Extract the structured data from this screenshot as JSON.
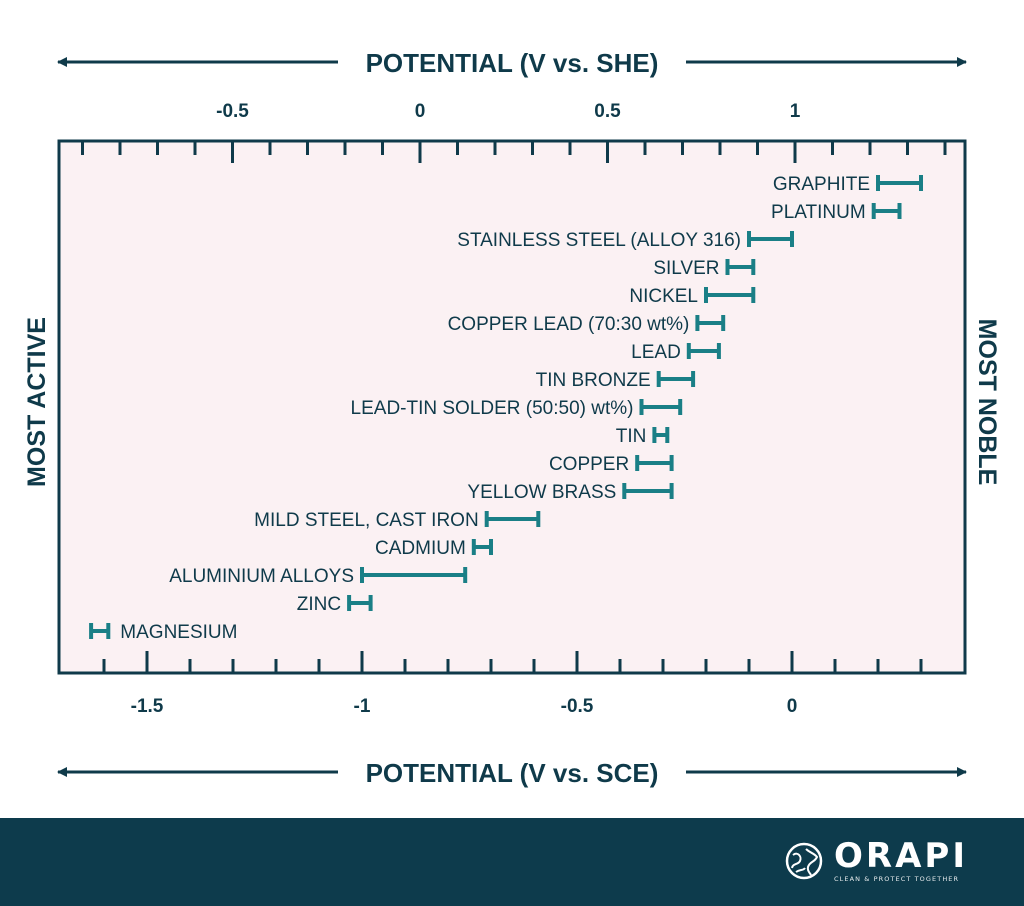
{
  "chart_data": {
    "type": "range",
    "top_axis_title": "POTENTIAL (V vs. SHE)",
    "bottom_axis_title": "POTENTIAL (V vs. SCE)",
    "left_label": "MOST ACTIVE",
    "right_label": "MOST NOBLE",
    "top_axis": {
      "ticks": [
        -0.5,
        0,
        0.5,
        1
      ],
      "tick_labels": [
        "-0.5",
        "0",
        "0.5",
        "1"
      ],
      "range": [
        -1.0,
        1.45
      ]
    },
    "bottom_axis": {
      "ticks": [
        -1.5,
        -1,
        -0.5,
        0
      ],
      "tick_labels": [
        "-1.5",
        "-1",
        "-0.5",
        "0"
      ],
      "range": [
        -1.7,
        0.41
      ]
    },
    "series": [
      {
        "label": "GRAPHITE",
        "min": 0.2,
        "max": 0.3
      },
      {
        "label": "PLATINUM",
        "min": 0.19,
        "max": 0.25
      },
      {
        "label": "STAINLESS STEEL (ALLOY 316)",
        "min": -0.1,
        "max": 0.0
      },
      {
        "label": "SILVER",
        "min": -0.15,
        "max": -0.09
      },
      {
        "label": "NICKEL",
        "min": -0.2,
        "max": -0.09
      },
      {
        "label": "COPPER LEAD (70:30 wt%)",
        "min": -0.22,
        "max": -0.16
      },
      {
        "label": "LEAD",
        "min": -0.24,
        "max": -0.17
      },
      {
        "label": "TIN BRONZE",
        "min": -0.31,
        "max": -0.23
      },
      {
        "label": "LEAD-TIN SOLDER (50:50) wt%)",
        "min": -0.35,
        "max": -0.26
      },
      {
        "label": "TIN",
        "min": -0.32,
        "max": -0.29
      },
      {
        "label": "COPPER",
        "min": -0.36,
        "max": -0.28
      },
      {
        "label": "YELLOW BRASS",
        "min": -0.39,
        "max": -0.28
      },
      {
        "label": "MILD STEEL, CAST IRON",
        "min": -0.71,
        "max": -0.59
      },
      {
        "label": "CADMIUM",
        "min": -0.74,
        "max": -0.7
      },
      {
        "label": "ALUMINIUM ALLOYS",
        "min": -1.0,
        "max": -0.76
      },
      {
        "label": "ZINC",
        "min": -1.03,
        "max": -0.98
      },
      {
        "label": "MAGNESIUM",
        "min": -1.63,
        "max": -1.59
      }
    ],
    "colors": {
      "bar": "#1a7f86",
      "text": "#0f3a4a",
      "plot_bg": "#fbf1f3",
      "frame": "#0f3a4a"
    }
  },
  "footer": {
    "brand_name": "ORAPI",
    "tagline": "CLEAN & PROTECT TOGETHER",
    "logo_icon": "globe-leaf-icon"
  }
}
